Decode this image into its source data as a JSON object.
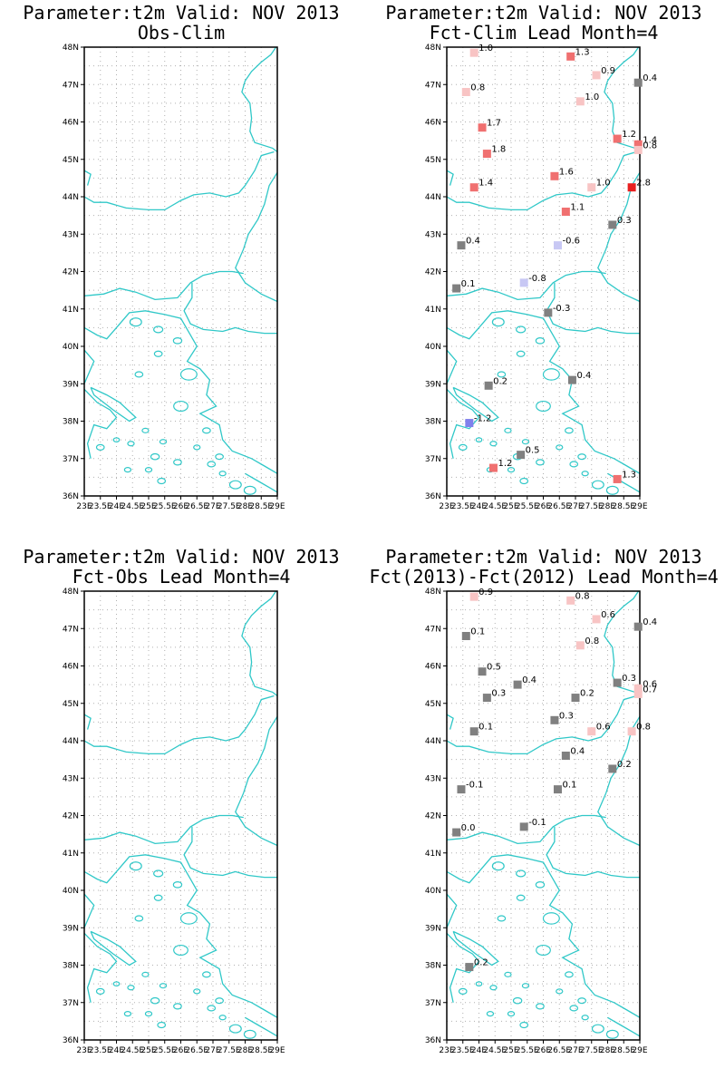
{
  "panels": [
    {
      "title1": "Parameter:t2m Valid: NOV 2013",
      "title2": "Obs-Clim",
      "stations": []
    },
    {
      "title1": "Parameter:t2m Valid: NOV 2013",
      "title2": "Fct-Clim Lead Month=4",
      "stations": [
        {
          "lon": 23.85,
          "lat": 47.85,
          "v": "1.0",
          "color": "#f8c4c4"
        },
        {
          "lon": 26.85,
          "lat": 47.75,
          "v": "1.3",
          "color": "#f07070"
        },
        {
          "lon": 27.65,
          "lat": 47.25,
          "v": "0.9",
          "color": "#f8c4c4"
        },
        {
          "lon": 28.95,
          "lat": 47.05,
          "v": "0.4",
          "color": "#808080"
        },
        {
          "lon": 23.6,
          "lat": 46.8,
          "v": "0.8",
          "color": "#f8c4c4"
        },
        {
          "lon": 27.15,
          "lat": 46.55,
          "v": "1.0",
          "color": "#f8c4c4"
        },
        {
          "lon": 24.1,
          "lat": 45.85,
          "v": "1.7",
          "color": "#f07070"
        },
        {
          "lon": 28.3,
          "lat": 45.55,
          "v": "1.2",
          "color": "#f07070"
        },
        {
          "lon": 28.95,
          "lat": 45.4,
          "v": "1.4",
          "color": "#f07070"
        },
        {
          "lon": 28.95,
          "lat": 45.25,
          "v": "0.8",
          "color": "#f8c4c4"
        },
        {
          "lon": 24.25,
          "lat": 45.15,
          "v": "1.8",
          "color": "#f07070"
        },
        {
          "lon": 26.35,
          "lat": 44.55,
          "v": "1.6",
          "color": "#f07070"
        },
        {
          "lon": 23.85,
          "lat": 44.25,
          "v": "1.4",
          "color": "#f07070"
        },
        {
          "lon": 27.5,
          "lat": 44.25,
          "v": "1.0",
          "color": "#f8c4c4"
        },
        {
          "lon": 28.75,
          "lat": 44.25,
          "v": "2.8",
          "color": "#e82020"
        },
        {
          "lon": 26.7,
          "lat": 43.6,
          "v": "1.1",
          "color": "#f07070"
        },
        {
          "lon": 28.15,
          "lat": 43.25,
          "v": "0.3",
          "color": "#808080"
        },
        {
          "lon": 23.45,
          "lat": 42.7,
          "v": "0.4",
          "color": "#808080"
        },
        {
          "lon": 26.45,
          "lat": 42.7,
          "v": "-0.6",
          "color": "#c8c8f4"
        },
        {
          "lon": 25.4,
          "lat": 41.7,
          "v": "-0.8",
          "color": "#c8c8f4"
        },
        {
          "lon": 23.3,
          "lat": 41.55,
          "v": "0.1",
          "color": "#808080"
        },
        {
          "lon": 26.15,
          "lat": 40.9,
          "v": "-0.3",
          "color": "#808080"
        },
        {
          "lon": 24.3,
          "lat": 38.95,
          "v": "0.2",
          "color": "#808080"
        },
        {
          "lon": 26.9,
          "lat": 39.1,
          "v": "0.4",
          "color": "#808080"
        },
        {
          "lon": 23.7,
          "lat": 37.95,
          "v": "-1.2",
          "color": "#8080ec"
        },
        {
          "lon": 25.3,
          "lat": 37.1,
          "v": "0.5",
          "color": "#808080"
        },
        {
          "lon": 24.45,
          "lat": 36.75,
          "v": "1.2",
          "color": "#f07070"
        },
        {
          "lon": 28.3,
          "lat": 36.45,
          "v": "1.3",
          "color": "#f07070"
        }
      ]
    },
    {
      "title1": "Parameter:t2m Valid: NOV 2013",
      "title2": "Fct-Obs Lead Month=4",
      "stations": []
    },
    {
      "title1": "Parameter:t2m Valid: NOV 2013",
      "title2": "Fct(2013)-Fct(2012) Lead Month=4",
      "stations": [
        {
          "lon": 23.85,
          "lat": 47.85,
          "v": "0.9",
          "color": "#f8c4c4"
        },
        {
          "lon": 26.85,
          "lat": 47.75,
          "v": "0.8",
          "color": "#f8c4c4"
        },
        {
          "lon": 27.65,
          "lat": 47.25,
          "v": "0.6",
          "color": "#f8c4c4"
        },
        {
          "lon": 28.95,
          "lat": 47.05,
          "v": "0.4",
          "color": "#808080"
        },
        {
          "lon": 23.6,
          "lat": 46.8,
          "v": "0.1",
          "color": "#808080"
        },
        {
          "lon": 27.15,
          "lat": 46.55,
          "v": "0.8",
          "color": "#f8c4c4"
        },
        {
          "lon": 24.1,
          "lat": 45.85,
          "v": "0.5",
          "color": "#808080"
        },
        {
          "lon": 25.2,
          "lat": 45.5,
          "v": "0.4",
          "color": "#808080"
        },
        {
          "lon": 28.3,
          "lat": 45.55,
          "v": "0.3",
          "color": "#808080"
        },
        {
          "lon": 28.95,
          "lat": 45.4,
          "v": "0.6",
          "color": "#f8c4c4"
        },
        {
          "lon": 28.95,
          "lat": 45.25,
          "v": "0.7",
          "color": "#f8c4c4"
        },
        {
          "lon": 24.25,
          "lat": 45.15,
          "v": "0.3",
          "color": "#808080"
        },
        {
          "lon": 27.0,
          "lat": 45.15,
          "v": "0.2",
          "color": "#808080"
        },
        {
          "lon": 26.35,
          "lat": 44.55,
          "v": "0.3",
          "color": "#808080"
        },
        {
          "lon": 23.85,
          "lat": 44.25,
          "v": "0.1",
          "color": "#808080"
        },
        {
          "lon": 27.5,
          "lat": 44.25,
          "v": "0.6",
          "color": "#f8c4c4"
        },
        {
          "lon": 28.75,
          "lat": 44.25,
          "v": "0.8",
          "color": "#f8c4c4"
        },
        {
          "lon": 26.7,
          "lat": 43.6,
          "v": "0.4",
          "color": "#808080"
        },
        {
          "lon": 28.15,
          "lat": 43.25,
          "v": "0.2",
          "color": "#808080"
        },
        {
          "lon": 23.45,
          "lat": 42.7,
          "v": "-0.1",
          "color": "#808080"
        },
        {
          "lon": 26.45,
          "lat": 42.7,
          "v": "0.1",
          "color": "#808080"
        },
        {
          "lon": 25.4,
          "lat": 41.7,
          "v": "-0.1",
          "color": "#808080"
        },
        {
          "lon": 23.3,
          "lat": 41.55,
          "v": "0.0",
          "color": "#808080"
        },
        {
          "lon": 23.7,
          "lat": 37.95,
          "v": "0.2",
          "color": "#808080"
        }
      ]
    }
  ],
  "axes": {
    "lon_labels": [
      "23E",
      "23.5E",
      "24E",
      "24.5E",
      "25E",
      "25.5E",
      "26E",
      "26.5E",
      "27E",
      "27.5E",
      "28E",
      "28.5E",
      "29E"
    ],
    "lat_labels": [
      "48N",
      "47N",
      "46N",
      "45N",
      "44N",
      "43N",
      "42N",
      "41N",
      "40N",
      "39N",
      "38N",
      "37N",
      "36N"
    ],
    "lon_range": [
      23,
      29
    ],
    "lat_range": [
      36,
      48
    ]
  },
  "colors": {
    "coast": "#30c8c8",
    "grid": "#b0b0b0",
    "frame": "#000000"
  }
}
